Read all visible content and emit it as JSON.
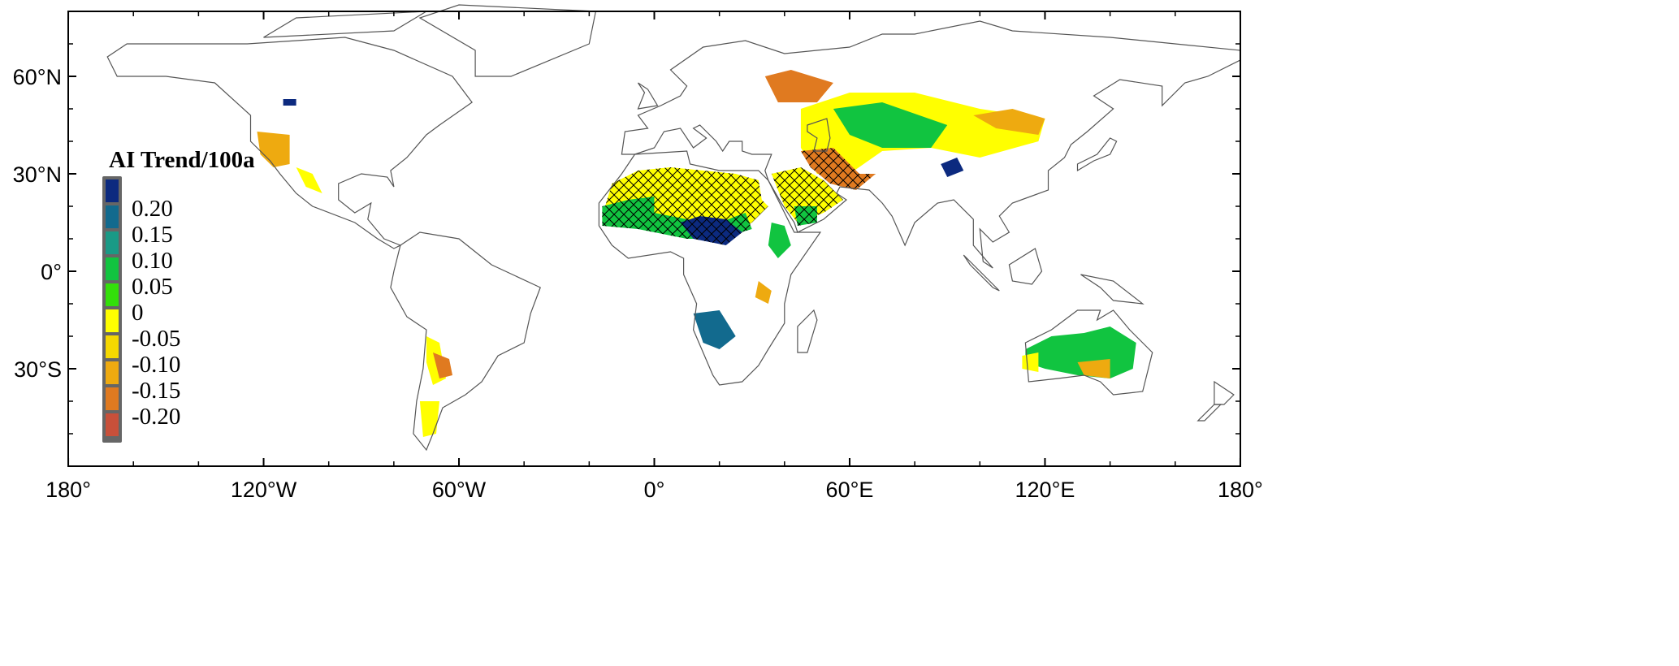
{
  "map": {
    "projection": "equirectangular",
    "x_ticks": [
      {
        "lon": -180,
        "label": "180°"
      },
      {
        "lon": -120,
        "label": "120°W"
      },
      {
        "lon": -60,
        "label": "60°W"
      },
      {
        "lon": 0,
        "label": "0°"
      },
      {
        "lon": 60,
        "label": "60°E"
      },
      {
        "lon": 120,
        "label": "120°E"
      },
      {
        "lon": 180,
        "label": "180°"
      }
    ],
    "y_ticks": [
      {
        "lat": 60,
        "label": "60°N"
      },
      {
        "lat": 30,
        "label": "30°N"
      },
      {
        "lat": 0,
        "label": "0°"
      },
      {
        "lat": -30,
        "label": "30°S"
      }
    ],
    "lon_range": [
      -180,
      180
    ],
    "lat_range": [
      -60,
      80
    ]
  },
  "legend": {
    "title": "AI Trend/100a",
    "bins": [
      {
        "label": "0.20",
        "color": "#0c2a7f"
      },
      {
        "label": "0.15",
        "color": "#126a8e"
      },
      {
        "label": "0.10",
        "color": "#1a9a86"
      },
      {
        "label": "0.05",
        "color": "#11c440"
      },
      {
        "label": "0",
        "color": "#33e00a"
      },
      {
        "label": "-0.05",
        "color": "#ffff00"
      },
      {
        "label": "-0.10",
        "color": "#f5d800"
      },
      {
        "label": "-0.15",
        "color": "#eeaa10"
      },
      {
        "label": "-0.20",
        "color": "#e07a20"
      },
      {
        "label": "",
        "color": "#c8503a"
      }
    ]
  },
  "trend_regions": [
    {
      "name": "sahara",
      "value": -0.05,
      "hatched": true,
      "poly": [
        [
          -16,
          17
        ],
        [
          -13,
          27
        ],
        [
          -5,
          31
        ],
        [
          5,
          32
        ],
        [
          15,
          31
        ],
        [
          25,
          30
        ],
        [
          32,
          28
        ],
        [
          33,
          22
        ],
        [
          35,
          20
        ],
        [
          30,
          15
        ],
        [
          25,
          12
        ],
        [
          15,
          12
        ],
        [
          5,
          14
        ],
        [
          -5,
          16
        ],
        [
          -16,
          16
        ]
      ]
    },
    {
      "name": "sahel",
      "value": 0.05,
      "hatched": true,
      "poly": [
        [
          -16,
          14
        ],
        [
          -16,
          20
        ],
        [
          -8,
          22
        ],
        [
          0,
          23
        ],
        [
          0,
          18
        ],
        [
          10,
          16
        ],
        [
          20,
          15
        ],
        [
          28,
          18
        ],
        [
          30,
          13
        ],
        [
          20,
          10
        ],
        [
          10,
          10
        ],
        [
          -5,
          13
        ]
      ]
    },
    {
      "name": "chad",
      "value": 0.2,
      "hatched": true,
      "poly": [
        [
          8,
          15
        ],
        [
          14,
          17
        ],
        [
          22,
          16
        ],
        [
          27,
          12
        ],
        [
          22,
          8
        ],
        [
          12,
          10
        ]
      ]
    },
    {
      "name": "arabia",
      "value": -0.05,
      "hatched": true,
      "poly": [
        [
          36,
          30
        ],
        [
          45,
          32
        ],
        [
          52,
          28
        ],
        [
          58,
          22
        ],
        [
          52,
          18
        ],
        [
          44,
          15
        ],
        [
          40,
          20
        ]
      ]
    },
    {
      "name": "yemen",
      "value": 0.05,
      "hatched": true,
      "poly": [
        [
          43,
          20
        ],
        [
          50,
          20
        ],
        [
          50,
          15
        ],
        [
          44,
          14
        ]
      ]
    },
    {
      "name": "central-asia",
      "value": -0.05,
      "hatched": false,
      "poly": [
        [
          45,
          50
        ],
        [
          60,
          55
        ],
        [
          80,
          55
        ],
        [
          100,
          50
        ],
        [
          120,
          47
        ],
        [
          118,
          40
        ],
        [
          100,
          35
        ],
        [
          85,
          38
        ],
        [
          70,
          37
        ],
        [
          60,
          30
        ],
        [
          50,
          30
        ],
        [
          45,
          38
        ]
      ]
    },
    {
      "name": "russia-steppe",
      "value": -0.2,
      "hatched": false,
      "poly": [
        [
          34,
          60
        ],
        [
          42,
          62
        ],
        [
          55,
          58
        ],
        [
          50,
          52
        ],
        [
          38,
          52
        ]
      ]
    },
    {
      "name": "kazakhstan",
      "value": 0.05,
      "hatched": false,
      "poly": [
        [
          55,
          50
        ],
        [
          70,
          52
        ],
        [
          90,
          45
        ],
        [
          85,
          38
        ],
        [
          70,
          38
        ],
        [
          60,
          42
        ]
      ]
    },
    {
      "name": "mongolia",
      "value": -0.15,
      "hatched": false,
      "poly": [
        [
          98,
          48
        ],
        [
          110,
          50
        ],
        [
          120,
          47
        ],
        [
          118,
          42
        ],
        [
          105,
          44
        ]
      ]
    },
    {
      "name": "tarim",
      "value": 0.2,
      "hatched": false,
      "poly": [
        [
          88,
          33
        ],
        [
          93,
          35
        ],
        [
          95,
          31
        ],
        [
          90,
          29
        ]
      ]
    },
    {
      "name": "iran",
      "value": -0.2,
      "hatched": true,
      "poly": [
        [
          45,
          37
        ],
        [
          55,
          38
        ],
        [
          63,
          30
        ],
        [
          68,
          30
        ],
        [
          62,
          25
        ],
        [
          54,
          27
        ],
        [
          48,
          32
        ]
      ]
    },
    {
      "name": "horn-of-africa",
      "value": 0.05,
      "hatched": false,
      "poly": [
        [
          36,
          15
        ],
        [
          40,
          14
        ],
        [
          42,
          8
        ],
        [
          38,
          4
        ],
        [
          35,
          8
        ]
      ]
    },
    {
      "name": "east-africa",
      "value": -0.15,
      "hatched": false,
      "poly": [
        [
          32,
          -3
        ],
        [
          36,
          -6
        ],
        [
          35,
          -10
        ],
        [
          31,
          -8
        ]
      ]
    },
    {
      "name": "kalahari",
      "value": 0.15,
      "hatched": false,
      "poly": [
        [
          12,
          -13
        ],
        [
          20,
          -12
        ],
        [
          25,
          -20
        ],
        [
          20,
          -24
        ],
        [
          15,
          -22
        ]
      ]
    },
    {
      "name": "australia",
      "value": 0.05,
      "hatched": false,
      "poly": [
        [
          114,
          -24
        ],
        [
          122,
          -20
        ],
        [
          132,
          -19
        ],
        [
          140,
          -17
        ],
        [
          148,
          -22
        ],
        [
          147,
          -30
        ],
        [
          140,
          -33
        ],
        [
          130,
          -32
        ],
        [
          120,
          -30
        ],
        [
          114,
          -28
        ]
      ]
    },
    {
      "name": "australia-west",
      "value": -0.05,
      "hatched": false,
      "poly": [
        [
          113,
          -26
        ],
        [
          118,
          -25
        ],
        [
          118,
          -31
        ],
        [
          113,
          -30
        ]
      ]
    },
    {
      "name": "australia-south",
      "value": -0.15,
      "hatched": false,
      "poly": [
        [
          130,
          -28
        ],
        [
          140,
          -27
        ],
        [
          140,
          -33
        ],
        [
          132,
          -32
        ]
      ]
    },
    {
      "name": "southwest-us",
      "value": -0.15,
      "hatched": false,
      "poly": [
        [
          -122,
          43
        ],
        [
          -112,
          42
        ],
        [
          -112,
          33
        ],
        [
          -117,
          32
        ],
        [
          -121,
          36
        ]
      ]
    },
    {
      "name": "mexico",
      "value": -0.05,
      "hatched": false,
      "poly": [
        [
          -110,
          32
        ],
        [
          -105,
          30
        ],
        [
          -102,
          24
        ],
        [
          -107,
          26
        ]
      ]
    },
    {
      "name": "canada",
      "value": 0.2,
      "hatched": false,
      "poly": [
        [
          -114,
          53
        ],
        [
          -110,
          53
        ],
        [
          -110,
          51
        ],
        [
          -114,
          51
        ]
      ]
    },
    {
      "name": "andes",
      "value": -0.05,
      "hatched": false,
      "poly": [
        [
          -70,
          -20
        ],
        [
          -66,
          -22
        ],
        [
          -64,
          -33
        ],
        [
          -68,
          -35
        ],
        [
          -70,
          -28
        ]
      ]
    },
    {
      "name": "argentina",
      "value": -0.2,
      "hatched": false,
      "poly": [
        [
          -68,
          -25
        ],
        [
          -63,
          -27
        ],
        [
          -62,
          -32
        ],
        [
          -66,
          -33
        ]
      ]
    },
    {
      "name": "patagonia",
      "value": -0.05,
      "hatched": false,
      "poly": [
        [
          -72,
          -40
        ],
        [
          -66,
          -40
        ],
        [
          -67,
          -50
        ],
        [
          -71,
          -51
        ]
      ]
    }
  ]
}
